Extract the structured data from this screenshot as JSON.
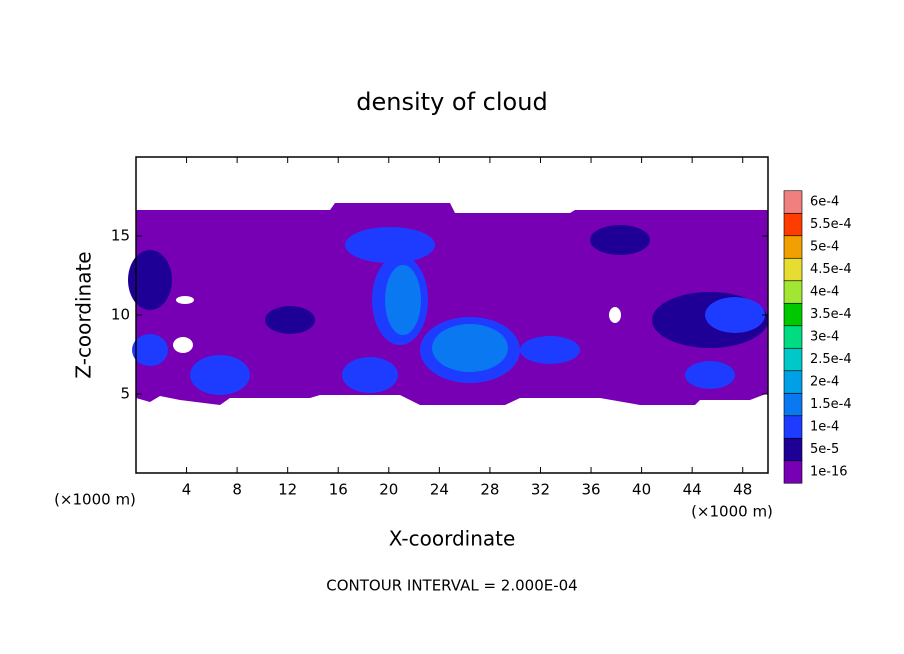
{
  "chart_data": {
    "type": "contour",
    "title": "density of cloud",
    "x_label": "X-coordinate",
    "y_label": "Z-coordinate",
    "x_unit": "(×1000 m)",
    "y_unit": "(×1000 m)",
    "footer": "CONTOUR INTERVAL = 2.000E-04",
    "xlim": [
      0,
      50
    ],
    "xticks": [
      4,
      8,
      12,
      16,
      20,
      24,
      28,
      32,
      36,
      40,
      44,
      48
    ],
    "ylim": [
      0,
      20
    ],
    "yticks": [
      5,
      10,
      15
    ],
    "colorbar": {
      "levels": [
        {
          "value": 1e-16,
          "label": "1e-16"
        },
        {
          "value": 5e-05,
          "label": "5e-5"
        },
        {
          "value": 0.0001,
          "label": "1e-4"
        },
        {
          "value": 0.00015,
          "label": "1.5e-4"
        },
        {
          "value": 0.0002,
          "label": "2e-4"
        },
        {
          "value": 0.00025,
          "label": "2.5e-4"
        },
        {
          "value": 0.0003,
          "label": "3e-4"
        },
        {
          "value": 0.00035,
          "label": "3.5e-4"
        },
        {
          "value": 0.0004,
          "label": "4e-4"
        },
        {
          "value": 0.00045,
          "label": "4.5e-4"
        },
        {
          "value": 0.0005,
          "label": "5e-4"
        },
        {
          "value": 0.00055,
          "label": "5.5e-4"
        },
        {
          "value": 0.0006,
          "label": "6e-4"
        }
      ],
      "colors": [
        "#7800b4",
        "#1e0096",
        "#1e3cff",
        "#0a78f0",
        "#00a0e6",
        "#00c8c8",
        "#00dc82",
        "#00c800",
        "#a0e632",
        "#e6dc32",
        "#f0a000",
        "#ff3c00",
        "#f08080"
      ]
    }
  }
}
